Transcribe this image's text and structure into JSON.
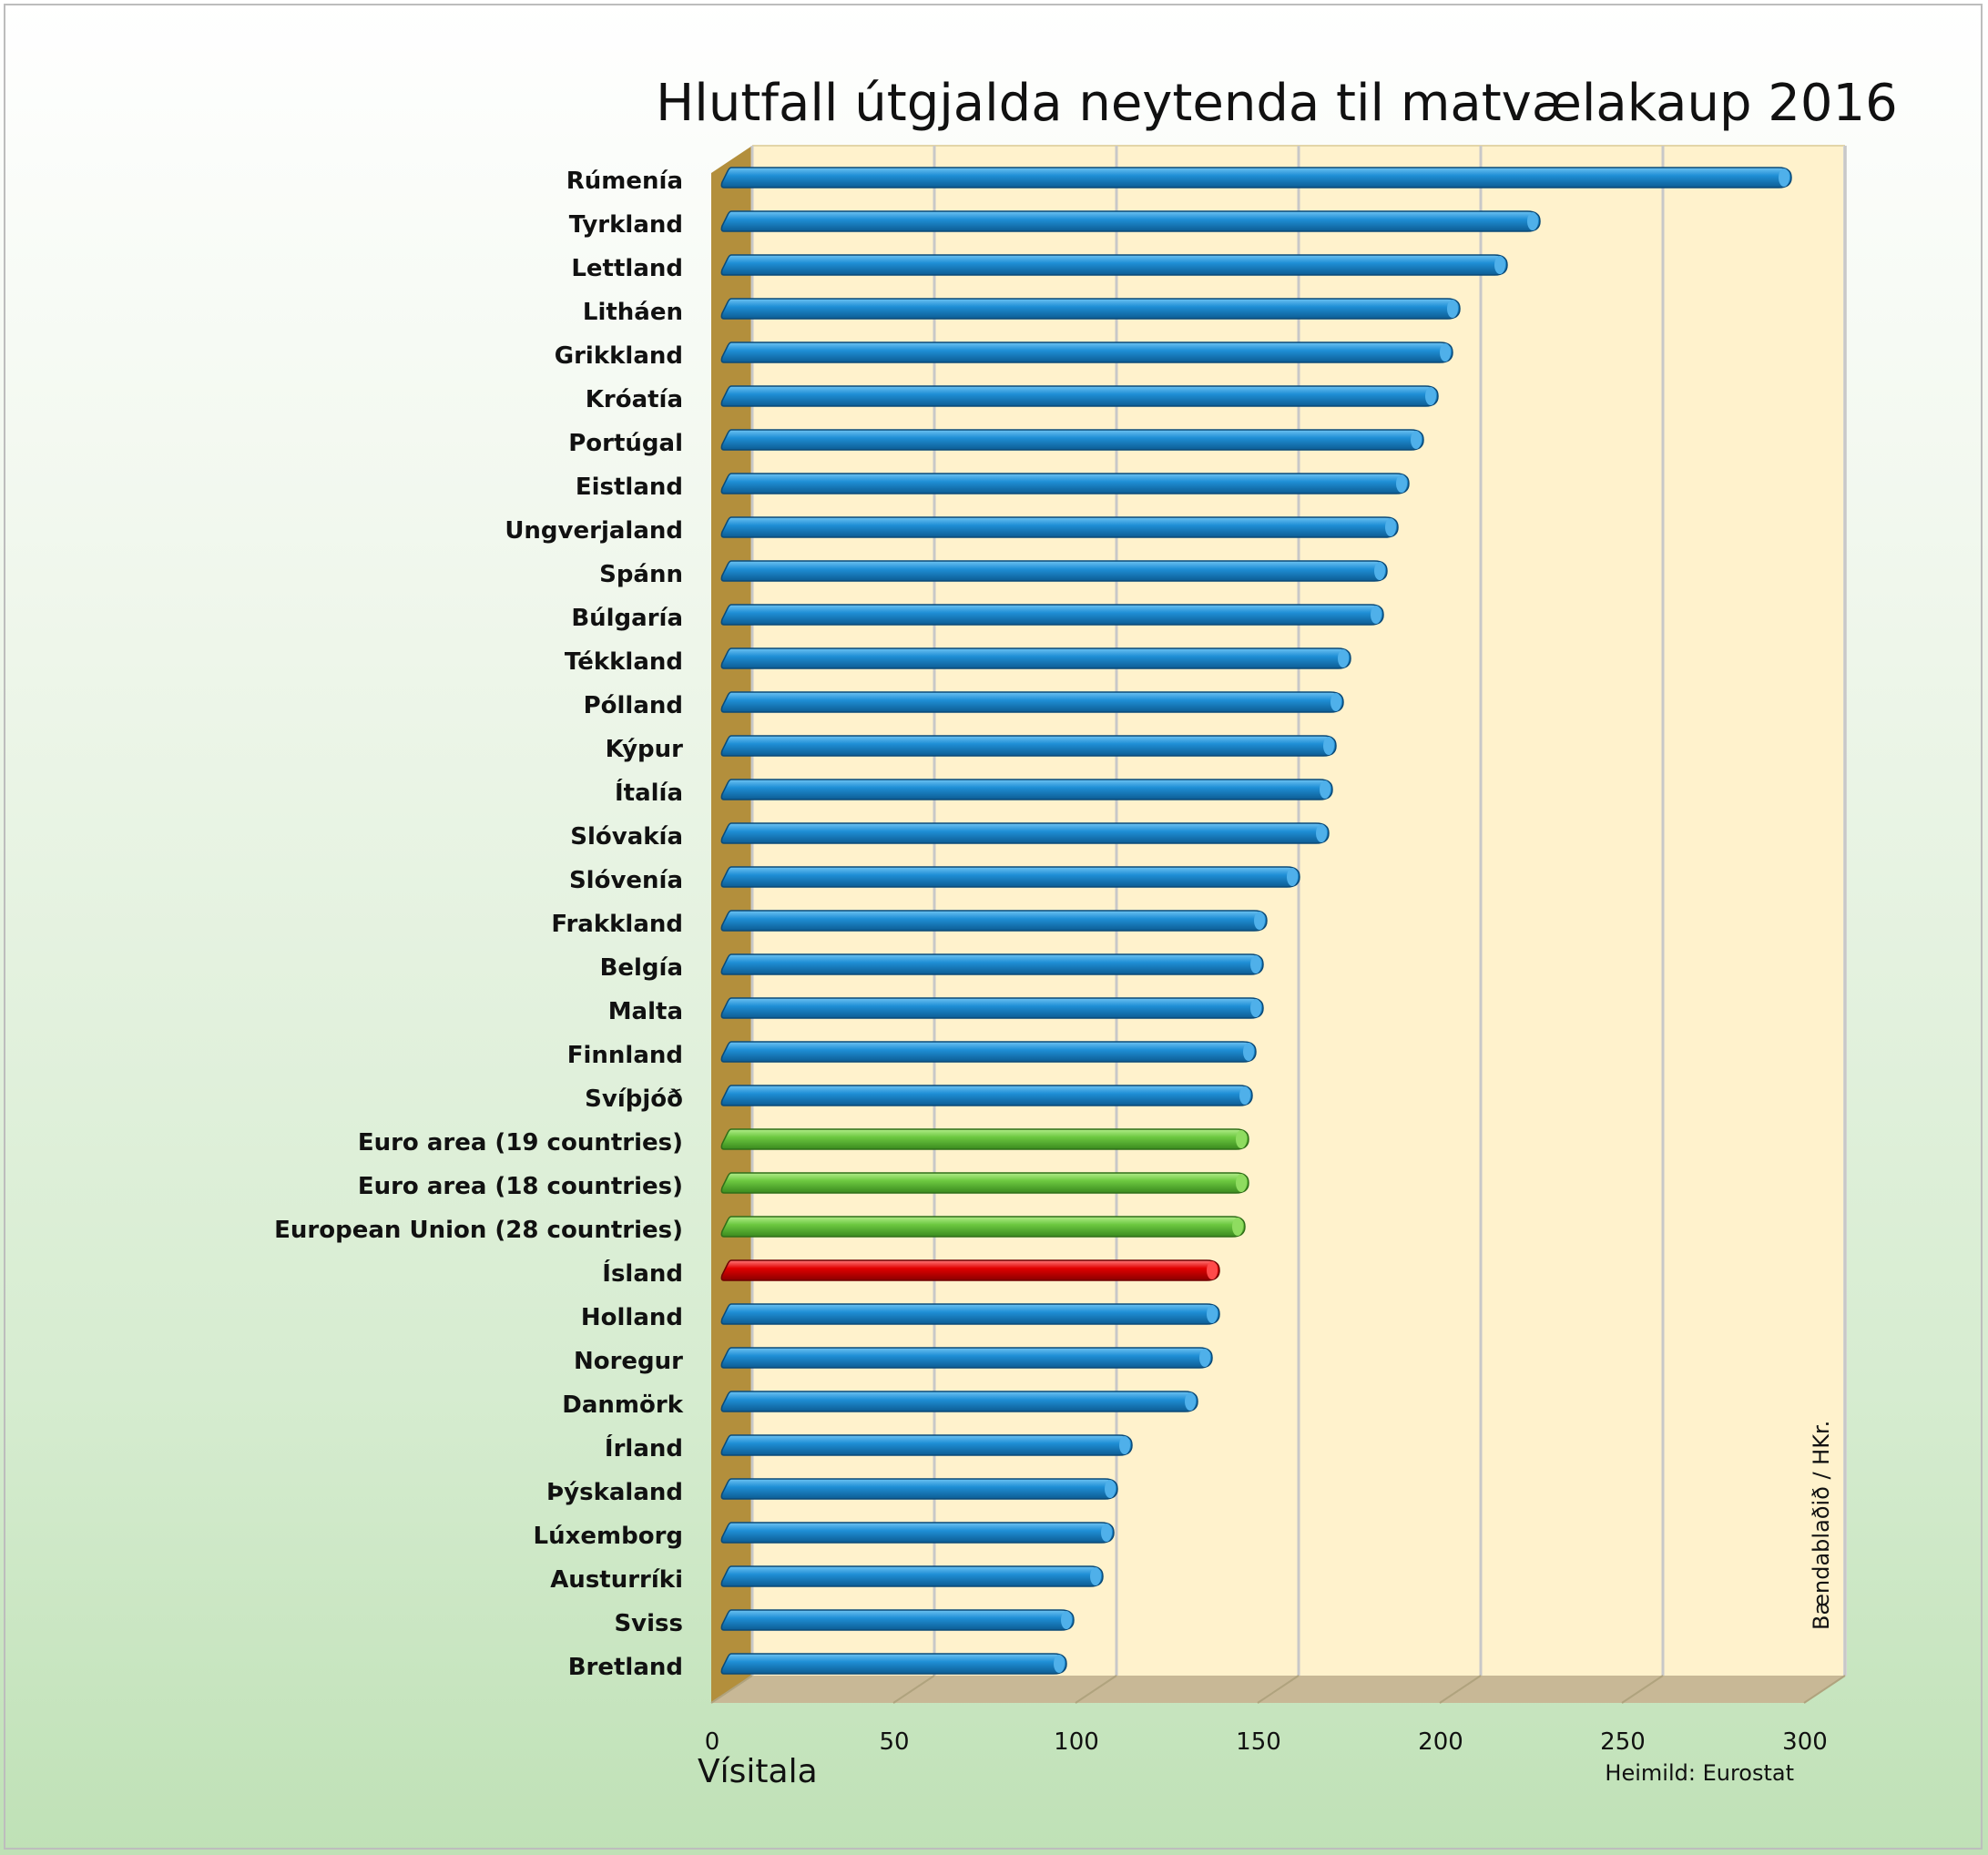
{
  "chart_data": {
    "type": "bar",
    "orientation": "horizontal",
    "title": "Hlutfall útgjalda neytenda til matvælakaup 2016",
    "xlabel": "Vísitala",
    "ylabel": "",
    "xlim": [
      0,
      300
    ],
    "xticks": [
      "0",
      "50",
      "100",
      "150",
      "200",
      "250",
      "300"
    ],
    "source": "Heimild: Eurostat",
    "credit": "Bændablaðið / HKr.",
    "categories": [
      "Rúmenía",
      "Tyrkland",
      "Lettland",
      "Litháen",
      "Grikkland",
      "Króatía",
      "Portúgal",
      "Eistland",
      "Ungverjaland",
      "Spánn",
      "Búlgaría",
      "Tékkland",
      "Pólland",
      "Kýpur",
      "Ítalía",
      "Slóvakía",
      "Slóvenía",
      "Frakkland",
      "Belgía",
      "Malta",
      "Finnland",
      "Svíþjóð",
      "Euro area (19 countries)",
      "Euro area (18 countries)",
      "European Union (28 countries)",
      "Ísland",
      "Holland",
      "Noregur",
      "Danmörk",
      "Írland",
      "Þýskaland",
      "Lúxemborg",
      "Austurríki",
      "Sviss",
      "Bretland"
    ],
    "values": [
      293,
      224,
      215,
      202,
      200,
      196,
      192,
      188,
      185,
      182,
      181,
      172,
      170,
      168,
      167,
      166,
      158,
      149,
      148,
      148,
      146,
      145,
      144,
      144,
      143,
      136,
      136,
      134,
      130,
      112,
      108,
      107,
      104,
      96,
      94
    ],
    "bar_groups": [
      "country",
      "country",
      "country",
      "country",
      "country",
      "country",
      "country",
      "country",
      "country",
      "country",
      "country",
      "country",
      "country",
      "country",
      "country",
      "country",
      "country",
      "country",
      "country",
      "country",
      "country",
      "country",
      "aggregate",
      "aggregate",
      "aggregate",
      "highlight",
      "country",
      "country",
      "country",
      "country",
      "country",
      "country",
      "country",
      "country",
      "country"
    ]
  },
  "colors": {
    "country": "#1f8fd6",
    "aggregate": "#6cc840",
    "highlight": "#e00000",
    "plot_background": "#fff2cc",
    "side_wall": "#b38f3c",
    "floor": "#c8b896",
    "gridline": "#c8c8c8"
  }
}
